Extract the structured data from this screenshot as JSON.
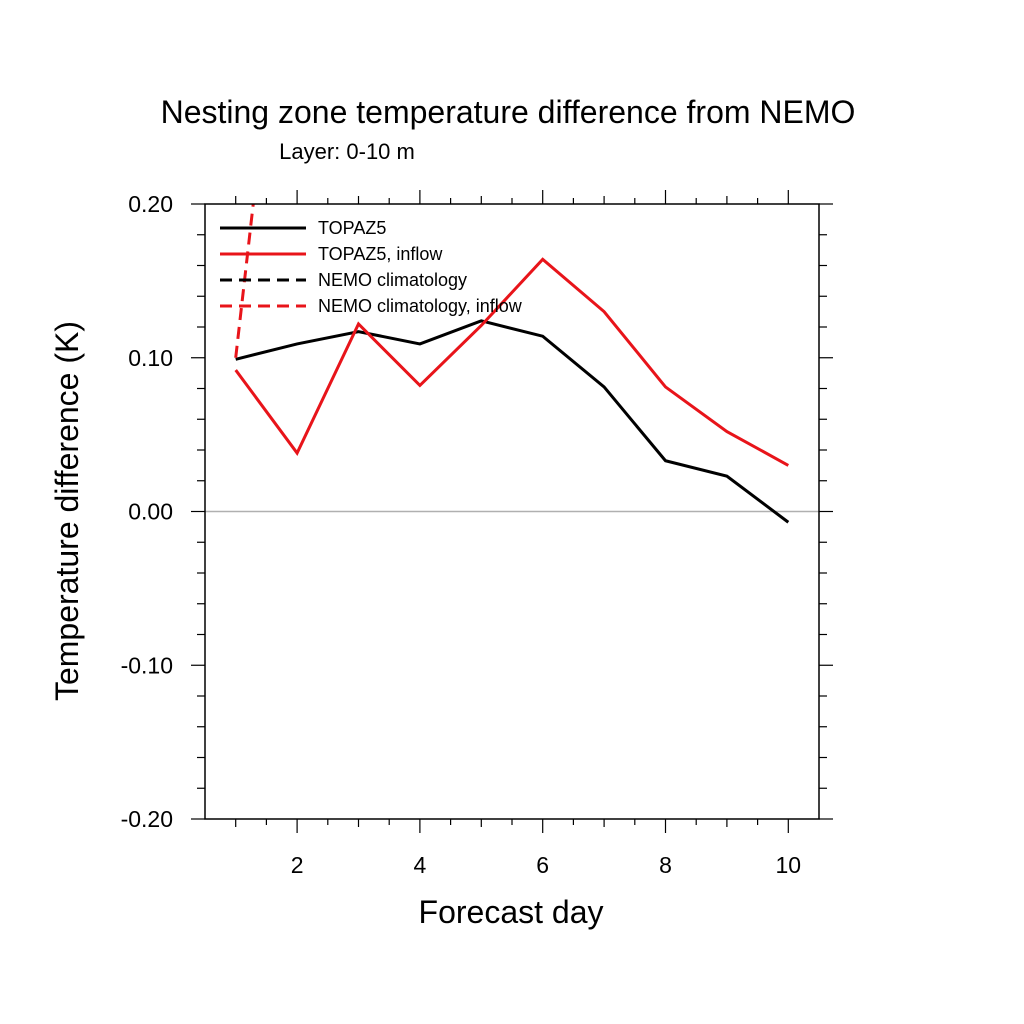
{
  "chart_data": {
    "type": "line",
    "title": "Nesting zone temperature difference from NEMO",
    "subtitle": "Layer: 0-10 m",
    "xlabel": "Forecast day",
    "ylabel": "Temperature difference (K)",
    "xlim": [
      0.5,
      10.5
    ],
    "ylim": [
      -0.2,
      0.2
    ],
    "x_ticks": [
      2,
      4,
      6,
      8,
      10
    ],
    "x_tick_labels": [
      "2",
      "4",
      "6",
      "8",
      "10"
    ],
    "y_ticks": [
      -0.2,
      -0.1,
      0.0,
      0.1,
      0.2
    ],
    "y_tick_labels": [
      "-0.20",
      "-0.10",
      "0.00",
      "0.10",
      "0.20"
    ],
    "zero_line": true,
    "grid": false,
    "legend_position": "top-left",
    "series": [
      {
        "name": "TOPAZ5",
        "color": "#000000",
        "dash": "solid",
        "x": [
          1,
          2,
          3,
          4,
          5,
          6,
          7,
          8,
          9,
          10
        ],
        "y": [
          0.099,
          0.109,
          0.117,
          0.109,
          0.124,
          0.114,
          0.081,
          0.033,
          0.023,
          -0.007
        ]
      },
      {
        "name": "TOPAZ5, inflow",
        "color": "#e8141a",
        "dash": "solid",
        "x": [
          1,
          2,
          3,
          4,
          5,
          6,
          7,
          8,
          9,
          10
        ],
        "y": [
          0.092,
          0.038,
          0.122,
          0.082,
          0.121,
          0.164,
          0.13,
          0.081,
          0.052,
          0.03
        ]
      },
      {
        "name": "NEMO climatology",
        "color": "#000000",
        "dash": "dashed",
        "x": [],
        "y": []
      },
      {
        "name": "NEMO climatology, inflow",
        "color": "#e8141a",
        "dash": "dashed",
        "x": [
          1,
          1.3
        ],
        "y": [
          0.1,
          0.205
        ]
      }
    ]
  }
}
